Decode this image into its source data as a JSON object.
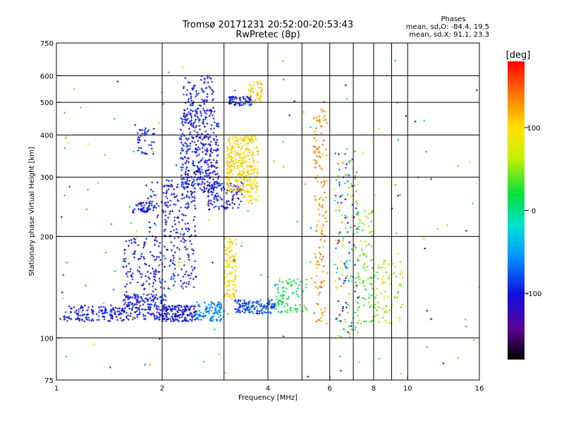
{
  "chart_data": {
    "type": "scatter",
    "title": "Tromsø 20171231 20:52:00-20:53:43",
    "subtitle": "RwPretec (8p)",
    "xlabel": "Frequency [MHz]",
    "ylabel": "Stationary phase Virtual Height [km]",
    "x_scale": "log",
    "y_scale": "log",
    "xlim": [
      1,
      16
    ],
    "ylim": [
      75,
      750
    ],
    "x_ticks": [
      1,
      2,
      4,
      6,
      8,
      10,
      16
    ],
    "y_ticks": [
      75,
      100,
      200,
      300,
      400,
      500,
      600,
      750
    ],
    "x_gridlines": [
      2,
      4,
      6,
      8,
      10
    ],
    "y_gridlines": [
      100,
      200,
      300,
      400,
      500,
      600
    ],
    "x_minor_gridlines": [
      3,
      5,
      7,
      9
    ],
    "grid": true,
    "phase_stats": {
      "heading": "Phases",
      "line_o": "mean, sd,O: -84.4, 19.5",
      "line_x": "mean, sd,X:  91.1, 23.3"
    },
    "colorbar": {
      "label": "[deg]",
      "range": [
        -180,
        180
      ],
      "ticks": [
        "100",
        "0",
        "-100"
      ],
      "tick_values": [
        100,
        0,
        -100
      ]
    },
    "clusters": [
      {
        "x": [
          1.05,
          1.55
        ],
        "y": [
          112,
          125
        ],
        "phase_mean": -100,
        "n": 140
      },
      {
        "x": [
          1.55,
          2.05
        ],
        "y": [
          113,
          135
        ],
        "phase_mean": -100,
        "n": 170
      },
      {
        "x": [
          1.55,
          2.0
        ],
        "y": [
          130,
          200
        ],
        "phase_mean": -100,
        "n": 130
      },
      {
        "x": [
          2.0,
          2.5
        ],
        "y": [
          112,
          125
        ],
        "phase_mean": -100,
        "n": 160
      },
      {
        "x": [
          2.5,
          3.0
        ],
        "y": [
          112,
          128
        ],
        "phase_mean": -60,
        "n": 100
      },
      {
        "x": [
          2.0,
          2.5
        ],
        "y": [
          140,
          290
        ],
        "phase_mean": -100,
        "n": 210
      },
      {
        "x": [
          2.25,
          2.9
        ],
        "y": [
          270,
          470
        ],
        "phase_mean": -100,
        "n": 380
      },
      {
        "x": [
          2.3,
          2.8
        ],
        "y": [
          470,
          600
        ],
        "phase_mean": -100,
        "n": 90
      },
      {
        "x": [
          2.7,
          3.4
        ],
        "y": [
          240,
          290
        ],
        "phase_mean": -100,
        "n": 110
      },
      {
        "x": [
          3.0,
          3.25
        ],
        "y": [
          130,
          200
        ],
        "phase_mean": 95,
        "n": 120
      },
      {
        "x": [
          3.05,
          3.4
        ],
        "y": [
          270,
          400
        ],
        "phase_mean": 100,
        "n": 170
      },
      {
        "x": [
          3.4,
          3.75
        ],
        "y": [
          250,
          400
        ],
        "phase_mean": 100,
        "n": 160
      },
      {
        "x": [
          3.1,
          3.6
        ],
        "y": [
          490,
          520
        ],
        "phase_mean": -100,
        "n": 70
      },
      {
        "x": [
          3.5,
          3.85
        ],
        "y": [
          500,
          580
        ],
        "phase_mean": 110,
        "n": 45
      },
      {
        "x": [
          3.2,
          4.2
        ],
        "y": [
          118,
          130
        ],
        "phase_mean": -80,
        "n": 130
      },
      {
        "x": [
          4.2,
          5.2
        ],
        "y": [
          118,
          150
        ],
        "phase_mean": 20,
        "n": 90
      },
      {
        "x": [
          1.65,
          1.9
        ],
        "y": [
          235,
          255
        ],
        "phase_mean": -100,
        "n": 55
      },
      {
        "x": [
          1.7,
          1.9
        ],
        "y": [
          350,
          420
        ],
        "phase_mean": -100,
        "n": 40
      },
      {
        "x": [
          1.8,
          2.15
        ],
        "y": [
          200,
          300
        ],
        "phase_mean": -100,
        "n": 40
      },
      {
        "x": [
          5.4,
          5.9
        ],
        "y": [
          110,
          480
        ],
        "phase_mean": 130,
        "n": 140
      },
      {
        "x": [
          6.2,
          7.2
        ],
        "y": [
          100,
          360
        ],
        "phase_mean": 0,
        "n": 170
      },
      {
        "x": [
          7.2,
          8.0
        ],
        "y": [
          110,
          240
        ],
        "phase_mean": 40,
        "n": 90
      },
      {
        "x": [
          8.0,
          9.7
        ],
        "y": [
          110,
          170
        ],
        "phase_mean": 60,
        "n": 80
      },
      {
        "x": [
          1.0,
          16.0
        ],
        "y": [
          76,
          680
        ],
        "phase_mean": 0,
        "n": 160
      }
    ]
  }
}
